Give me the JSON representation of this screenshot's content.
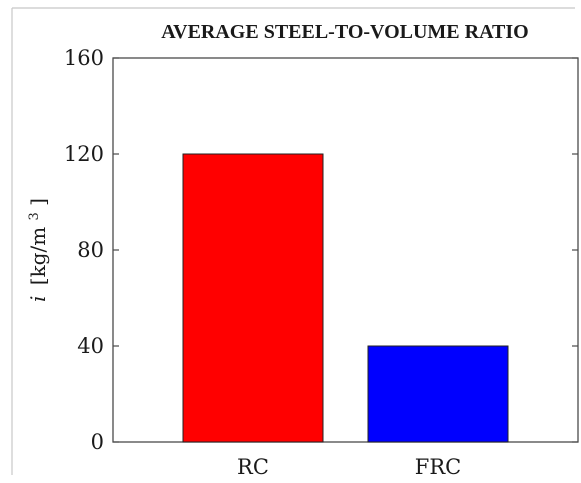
{
  "chart_data": {
    "type": "bar",
    "title": "AVERAGE STEEL-TO-VOLUME RATIO",
    "categories": [
      "RC",
      "FRC"
    ],
    "values": [
      120,
      40
    ],
    "colors": [
      "#ff0000",
      "#0000ff"
    ],
    "ylabel": {
      "symbol": "i",
      "unit_open": "[kg/m",
      "unit_exp": "3",
      "unit_close": "]"
    },
    "ylim": [
      0,
      160
    ],
    "yticks": [
      "0",
      "40",
      "80",
      "120",
      "160"
    ],
    "grid": false
  }
}
